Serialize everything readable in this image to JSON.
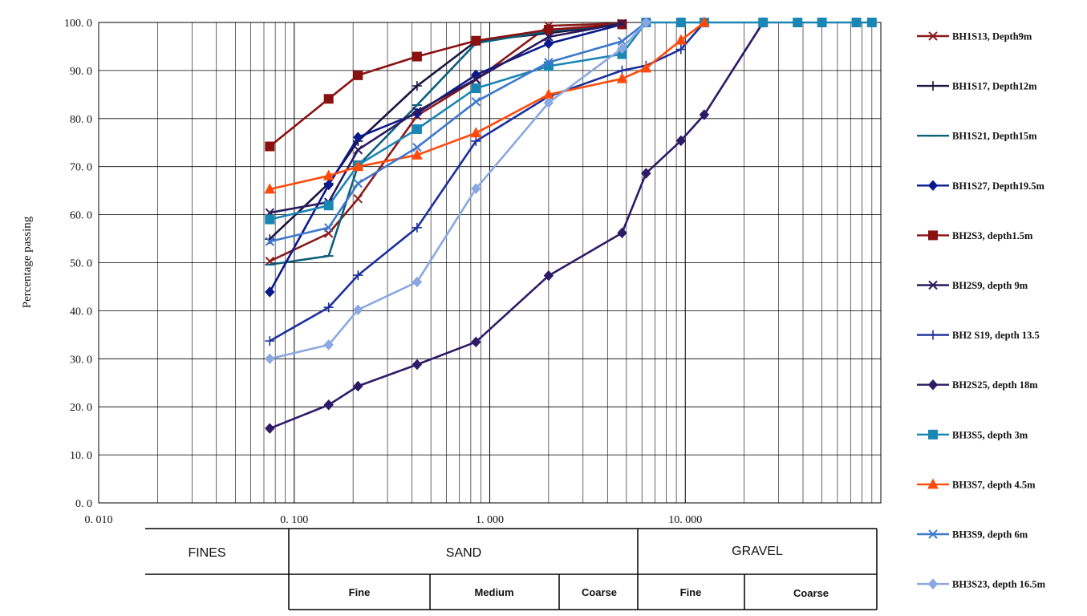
{
  "chart_data": {
    "type": "line",
    "x_scale": "log",
    "xlim": [
      0.01,
      100
    ],
    "ylim": [
      0,
      100
    ],
    "ylabel": "Percentage passing",
    "xlabel": "",
    "grid": true,
    "legend_position": "right",
    "y_ticks": [
      {
        "value": 0,
        "label": "0. 0"
      },
      {
        "value": 10,
        "label": "10. 0"
      },
      {
        "value": 20,
        "label": "20. 0"
      },
      {
        "value": 30,
        "label": "30. 0"
      },
      {
        "value": 40,
        "label": "40. 0"
      },
      {
        "value": 50,
        "label": "50. 0"
      },
      {
        "value": 60,
        "label": "60. 0"
      },
      {
        "value": 70,
        "label": "70. 0"
      },
      {
        "value": 80,
        "label": "80. 0"
      },
      {
        "value": 90,
        "label": "90. 0"
      },
      {
        "value": 100,
        "label": "100. 0"
      }
    ],
    "x_ticks": [
      {
        "value": 0.01,
        "label": "0. 010"
      },
      {
        "value": 0.1,
        "label": "0. 100"
      },
      {
        "value": 1,
        "label": "1. 000"
      },
      {
        "value": 10,
        "label": "10. 000"
      }
    ],
    "series": [
      {
        "name": "BH1S13, Depth9m",
        "color": "#8b1a1a",
        "marker": "x",
        "points": [
          [
            0.075,
            50.3
          ],
          [
            0.15,
            56.1
          ],
          [
            0.212,
            63.3
          ],
          [
            0.425,
            80.6
          ],
          [
            0.85,
            88.1
          ],
          [
            2,
            99.3
          ],
          [
            4.75,
            99.8
          ]
        ]
      },
      {
        "name": "BH1S17, Depth12m",
        "color": "#1a1440",
        "marker": "plus",
        "points": [
          [
            0.075,
            54.9
          ],
          [
            0.15,
            66.5
          ],
          [
            0.212,
            75.3
          ],
          [
            0.425,
            86.8
          ],
          [
            0.85,
            96.1
          ],
          [
            2,
            97.8
          ],
          [
            4.75,
            99.6
          ]
        ]
      },
      {
        "name": "BH1S21, Depth15m",
        "color": "#0d5e7a",
        "marker": "dash",
        "points": [
          [
            0.075,
            49.6
          ],
          [
            0.15,
            51.4
          ],
          [
            0.212,
            70.2
          ],
          [
            0.425,
            82.8
          ],
          [
            0.85,
            95.7
          ],
          [
            2,
            98.2
          ],
          [
            4.75,
            99.7
          ]
        ]
      },
      {
        "name": "BH1S27, Depth19.5m",
        "color": "#0a1a8c",
        "marker": "diamond",
        "points": [
          [
            0.075,
            43.9
          ],
          [
            0.15,
            66.2
          ],
          [
            0.212,
            76.1
          ],
          [
            0.425,
            81.1
          ],
          [
            0.85,
            89.1
          ],
          [
            2,
            95.6
          ],
          [
            4.75,
            99.6
          ]
        ]
      },
      {
        "name": "BH2S3, depth1.5m",
        "color": "#8b1010",
        "marker": "square",
        "points": [
          [
            0.075,
            74.2
          ],
          [
            0.15,
            84.1
          ],
          [
            0.212,
            89.0
          ],
          [
            0.425,
            92.9
          ],
          [
            0.85,
            96.2
          ],
          [
            2,
            98.5
          ],
          [
            4.75,
            99.6
          ]
        ]
      },
      {
        "name": "BH2S9, depth 9m",
        "color": "#2a1a5e",
        "marker": "x",
        "points": [
          [
            0.075,
            60.4
          ],
          [
            0.15,
            62.6
          ],
          [
            0.212,
            73.5
          ],
          [
            0.425,
            81.5
          ],
          [
            0.85,
            88.2
          ],
          [
            2,
            97.0
          ],
          [
            4.75,
            99.8
          ]
        ]
      },
      {
        "name": "BH2 S19, depth 13.5",
        "color": "#1c2f9c",
        "marker": "plus",
        "points": [
          [
            0.075,
            33.7
          ],
          [
            0.15,
            40.7
          ],
          [
            0.212,
            47.4
          ],
          [
            0.425,
            57.3
          ],
          [
            0.85,
            75.3
          ],
          [
            2,
            84.6
          ],
          [
            4.75,
            90.0
          ],
          [
            6.3,
            91.0
          ],
          [
            9.5,
            94.4
          ],
          [
            12.5,
            100
          ]
        ]
      },
      {
        "name": "BH2S25, depth 18m",
        "color": "#2e1a66",
        "marker": "diamond",
        "points": [
          [
            0.075,
            15.5
          ],
          [
            0.15,
            20.4
          ],
          [
            0.212,
            24.3
          ],
          [
            0.425,
            28.8
          ],
          [
            0.85,
            33.5
          ],
          [
            2,
            47.3
          ],
          [
            4.75,
            56.2
          ],
          [
            6.3,
            68.6
          ],
          [
            9.5,
            75.4
          ],
          [
            12.5,
            80.8
          ],
          [
            25,
            100
          ]
        ]
      },
      {
        "name": "BH3S5, depth 3m",
        "color": "#1a86b4",
        "marker": "square",
        "points": [
          [
            0.075,
            59.0
          ],
          [
            0.15,
            61.9
          ],
          [
            0.212,
            70.3
          ],
          [
            0.425,
            77.8
          ],
          [
            0.85,
            86.3
          ],
          [
            2,
            90.9
          ],
          [
            4.75,
            93.4
          ],
          [
            6.3,
            100
          ],
          [
            9.5,
            100
          ],
          [
            12.5,
            100
          ],
          [
            25,
            100
          ],
          [
            37.5,
            100
          ],
          [
            50,
            100
          ],
          [
            75,
            100
          ],
          [
            90,
            100
          ]
        ]
      },
      {
        "name": "BH3S7, depth 4.5m",
        "color": "#ff4a0a",
        "marker": "triangle",
        "points": [
          [
            0.075,
            65.3
          ],
          [
            0.15,
            68.1
          ],
          [
            0.212,
            70.0
          ],
          [
            0.425,
            72.4
          ],
          [
            0.85,
            77.0
          ],
          [
            2,
            85.0
          ],
          [
            4.75,
            88.3
          ],
          [
            6.3,
            90.5
          ],
          [
            9.5,
            96.3
          ],
          [
            12.5,
            100
          ]
        ]
      },
      {
        "name": "BH3S9, depth 6m",
        "color": "#3c78cc",
        "marker": "x",
        "points": [
          [
            0.075,
            54.4
          ],
          [
            0.15,
            57.3
          ],
          [
            0.212,
            66.5
          ],
          [
            0.425,
            74.0
          ],
          [
            0.85,
            83.5
          ],
          [
            2,
            91.7
          ],
          [
            4.75,
            96.1
          ],
          [
            6.3,
            100
          ]
        ]
      },
      {
        "name": "BH3S23, depth 16.5m",
        "color": "#8aa8e0",
        "marker": "diamond",
        "points": [
          [
            0.075,
            30.0
          ],
          [
            0.15,
            32.9
          ],
          [
            0.212,
            40.2
          ],
          [
            0.425,
            46.0
          ],
          [
            0.85,
            65.4
          ],
          [
            2,
            83.3
          ],
          [
            4.75,
            94.6
          ],
          [
            6.3,
            100
          ]
        ]
      }
    ],
    "classification": {
      "fines": "FINES",
      "sand": "SAND",
      "gravel": "GRAVEL",
      "sand_fine": "Fine",
      "sand_medium": "Medium",
      "sand_coarse": "Coarse",
      "gravel_fine": "Fine",
      "gravel_coarse": "Coarse"
    }
  }
}
